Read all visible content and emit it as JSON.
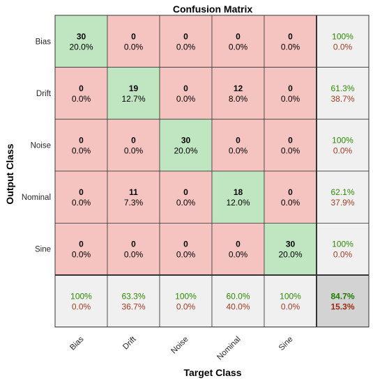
{
  "chart_data": {
    "type": "heatmap",
    "title": "Confusion Matrix",
    "xlabel": "Target Class",
    "ylabel": "Output Class",
    "classes": [
      "Bias",
      "Drift",
      "Noise",
      "Nominal",
      "Sine"
    ],
    "counts": [
      [
        30,
        0,
        0,
        0,
        0
      ],
      [
        0,
        19,
        0,
        12,
        0
      ],
      [
        0,
        0,
        30,
        0,
        0
      ],
      [
        0,
        11,
        0,
        18,
        0
      ],
      [
        0,
        0,
        0,
        0,
        30
      ]
    ],
    "percents": [
      [
        "20.0%",
        "0.0%",
        "0.0%",
        "0.0%",
        "0.0%"
      ],
      [
        "0.0%",
        "12.7%",
        "0.0%",
        "8.0%",
        "0.0%"
      ],
      [
        "0.0%",
        "0.0%",
        "20.0%",
        "0.0%",
        "0.0%"
      ],
      [
        "0.0%",
        "7.3%",
        "0.0%",
        "12.0%",
        "0.0%"
      ],
      [
        "0.0%",
        "0.0%",
        "0.0%",
        "0.0%",
        "20.0%"
      ]
    ],
    "row_summary": [
      {
        "correct": "100%",
        "wrong": "0.0%"
      },
      {
        "correct": "61.3%",
        "wrong": "38.7%"
      },
      {
        "correct": "100%",
        "wrong": "0.0%"
      },
      {
        "correct": "62.1%",
        "wrong": "37.9%"
      },
      {
        "correct": "100%",
        "wrong": "0.0%"
      }
    ],
    "col_summary": [
      {
        "correct": "100%",
        "wrong": "0.0%"
      },
      {
        "correct": "63.3%",
        "wrong": "36.7%"
      },
      {
        "correct": "100%",
        "wrong": "0.0%"
      },
      {
        "correct": "60.0%",
        "wrong": "40.0%"
      },
      {
        "correct": "100%",
        "wrong": "0.0%"
      }
    ],
    "overall": {
      "correct": "84.7%",
      "wrong": "15.3%"
    },
    "colors": {
      "diagonal": "#bfe6c0",
      "off_diagonal": "#f6c4c0",
      "summary": "#f0f0f0",
      "overall": "#d3d3d3",
      "correct_text": "#2e8b00",
      "wrong_text": "#a23c22"
    }
  }
}
